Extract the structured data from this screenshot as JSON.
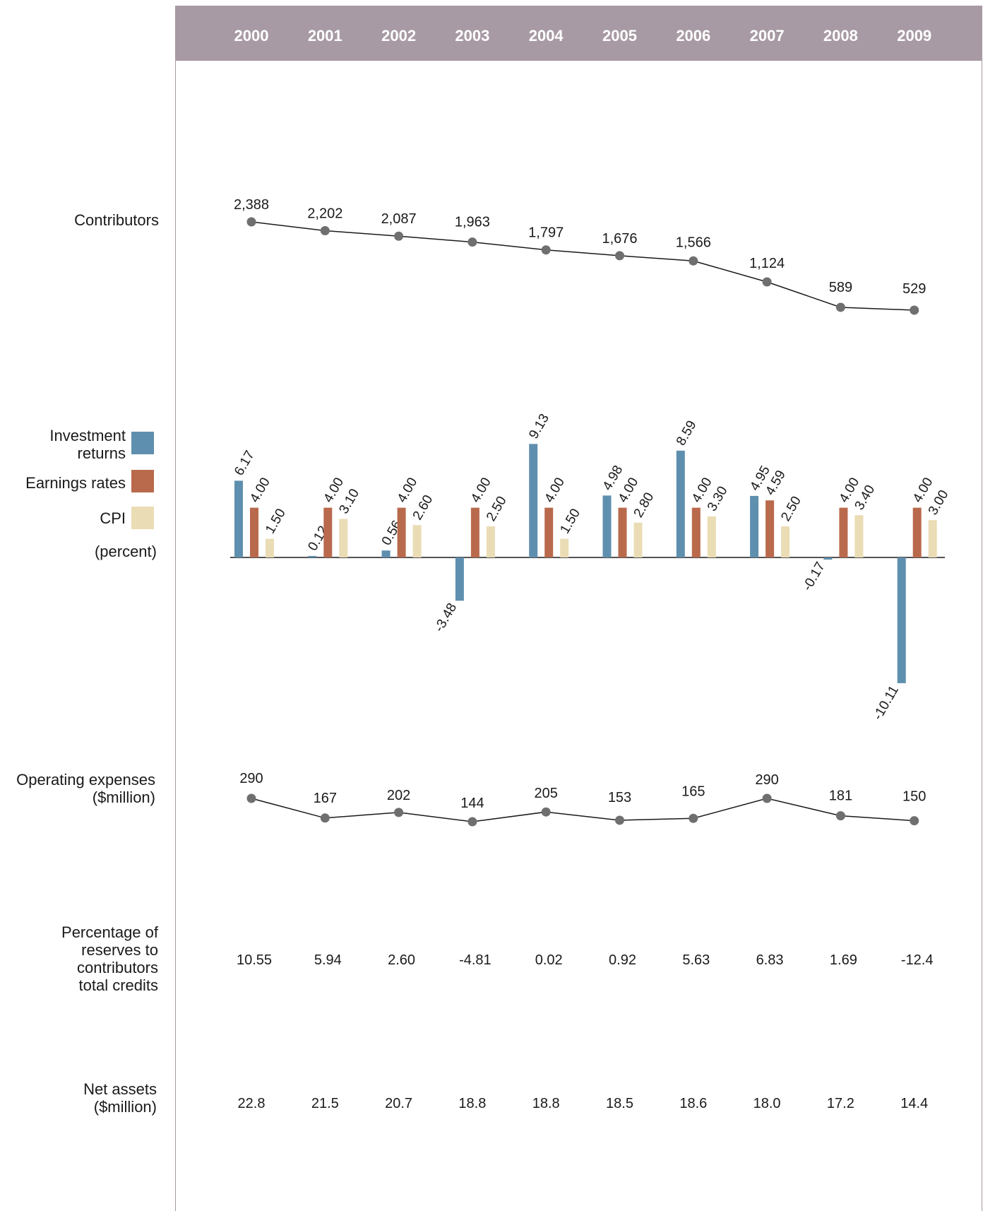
{
  "chart_data": [
    {
      "type": "table",
      "columns": [
        "2000",
        "2001",
        "2002",
        "2003",
        "2004",
        "2005",
        "2006",
        "2007",
        "2008",
        "2009"
      ]
    },
    {
      "type": "line",
      "label": "Contributors",
      "labels": [
        "2,388",
        "2,202",
        "2,087",
        "1,963",
        "1,797",
        "1,676",
        "1,566",
        "1,124",
        "589",
        "529"
      ],
      "values": [
        2388,
        2202,
        2087,
        1963,
        1797,
        1676,
        1566,
        1124,
        589,
        529
      ]
    },
    {
      "type": "bar",
      "label": "(percent)",
      "series": [
        {
          "name": "Investment returns",
          "color": "#5f8fae",
          "labels": [
            "6.17",
            "0.12",
            "0.56",
            "-3.48",
            "9.13",
            "4.98",
            "8.59",
            "4.95",
            "-0.17",
            "-10.11"
          ],
          "values": [
            6.17,
            0.12,
            0.56,
            -3.48,
            9.13,
            4.98,
            8.59,
            4.95,
            -0.17,
            -10.11
          ]
        },
        {
          "name": "Earnings rates",
          "color": "#b96a4c",
          "labels": [
            "4.00",
            "4.00",
            "4.00",
            "4.00",
            "4.00",
            "4.00",
            "4.00",
            "4.59",
            "4.00",
            "4.00"
          ],
          "values": [
            4.0,
            4.0,
            4.0,
            4.0,
            4.0,
            4.0,
            4.0,
            4.59,
            4.0,
            4.0
          ]
        },
        {
          "name": "CPI",
          "color": "#eadcb4",
          "labels": [
            "1.50",
            "3.10",
            "2.60",
            "2.50",
            "1.50",
            "2.80",
            "3.30",
            "2.50",
            "3.40",
            "3.00"
          ],
          "values": [
            1.5,
            3.1,
            2.6,
            2.5,
            1.5,
            2.8,
            3.3,
            2.5,
            3.4,
            3.0
          ]
        }
      ]
    },
    {
      "type": "line",
      "label": "Operating expenses ($million)",
      "labels": [
        "290",
        "167",
        "202",
        "144",
        "205",
        "153",
        "165",
        "290",
        "181",
        "150"
      ],
      "values": [
        290,
        167,
        202,
        144,
        205,
        153,
        165,
        290,
        181,
        150
      ]
    },
    {
      "type": "table",
      "label": "Percentage of reserves to contributors total credits",
      "values": [
        "10.55",
        "5.94",
        "2.60",
        "-4.81",
        "0.02",
        "0.92",
        "5.63",
        "6.83",
        "1.69",
        "-12.4"
      ]
    },
    {
      "type": "table",
      "label": "Net assets ($million)",
      "values": [
        "22.8",
        "21.5",
        "20.7",
        "18.8",
        "18.8",
        "18.5",
        "18.6",
        "18.0",
        "17.2",
        "14.4"
      ]
    }
  ],
  "labels": {
    "contributors": "Contributors",
    "investment": "Investment returns",
    "investment_l1": "Investment",
    "investment_l2": "returns",
    "earnings": "Earnings rates",
    "cpi": "CPI",
    "percent": "(percent)",
    "opex_l1": "Operating expenses",
    "opex_l2": "($million)",
    "reserves_l1": "Percentage of",
    "reserves_l2": "reserves to",
    "reserves_l3": "contributors",
    "reserves_l4": "total credits",
    "netassets_l1": "Net assets",
    "netassets_l2": "($million)"
  },
  "colors": {
    "header": "#a89aa4",
    "investment": "#5f8fae",
    "earnings": "#b96a4c",
    "cpi": "#eadcb4",
    "marker": "#6f6f6f"
  }
}
